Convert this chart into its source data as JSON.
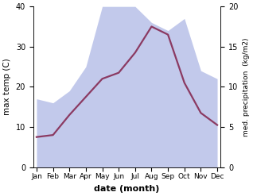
{
  "months": [
    "Jan",
    "Feb",
    "Mar",
    "Apr",
    "May",
    "Jun",
    "Jul",
    "Aug",
    "Sep",
    "Oct",
    "Nov",
    "Dec"
  ],
  "month_indices": [
    0,
    1,
    2,
    3,
    4,
    5,
    6,
    7,
    8,
    9,
    10,
    11
  ],
  "temperature": [
    7.5,
    8.0,
    13.0,
    17.5,
    22.0,
    23.5,
    28.5,
    35.0,
    33.0,
    21.0,
    13.5,
    10.5
  ],
  "precipitation": [
    8.5,
    8.0,
    9.5,
    12.5,
    20.0,
    20.0,
    20.0,
    18.0,
    17.0,
    18.5,
    12.0,
    11.0
  ],
  "temp_color": "#8b3a62",
  "precip_fill_color": "#b8c0e8",
  "precip_fill_alpha": 0.85,
  "temp_ylim": [
    0,
    40
  ],
  "precip_ylim": [
    0,
    20
  ],
  "temp_yticks": [
    0,
    10,
    20,
    30,
    40
  ],
  "precip_yticks": [
    0,
    5,
    10,
    15,
    20
  ],
  "xlabel": "date (month)",
  "ylabel_left": "max temp (C)",
  "ylabel_right": "med. precipitation  (kg/m2)",
  "bg_color": "#ffffff",
  "linewidth": 1.6
}
